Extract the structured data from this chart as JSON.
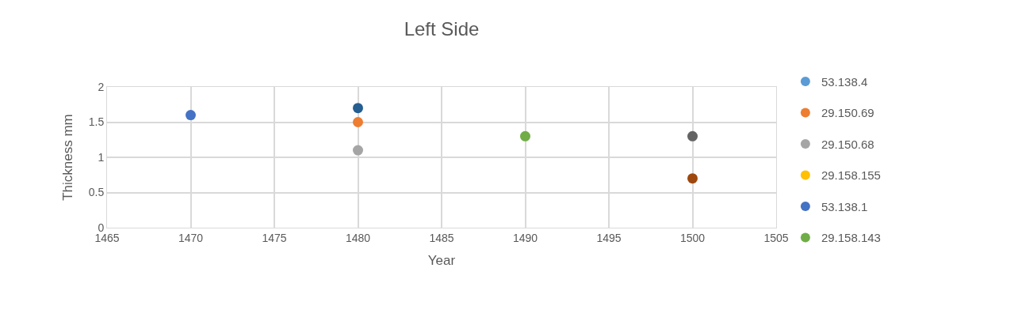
{
  "chart_data": {
    "type": "scatter",
    "title": "Left Side",
    "xlabel": "Year",
    "ylabel": "Thickness mm",
    "xlim": [
      1465,
      1505
    ],
    "xticks": [
      1465,
      1470,
      1475,
      1480,
      1485,
      1490,
      1495,
      1500,
      1505
    ],
    "ylim": [
      0,
      2
    ],
    "yticks": [
      0,
      0.5,
      1,
      1.5,
      2
    ],
    "grid": true,
    "legend": "right",
    "marker": "circle",
    "series": [
      {
        "name": "53.138.4",
        "color": "#5b9bd5"
      },
      {
        "name": "29.150.69",
        "color": "#ed7d31",
        "x": [
          1480
        ],
        "values": [
          1.5
        ]
      },
      {
        "name": "29.150.68",
        "color": "#a5a5a5",
        "x": [
          1480
        ],
        "values": [
          1.1
        ]
      },
      {
        "name": "29.158.155",
        "color": "#ffc000"
      },
      {
        "name": "53.138.1",
        "color": "#4472c4",
        "x": [
          1470
        ],
        "values": [
          1.6
        ]
      },
      {
        "name": "29.158.143",
        "color": "#70ad47",
        "x": [
          1490
        ],
        "values": [
          1.3
        ]
      },
      {
        "color": "#255e91",
        "x": [
          1480
        ],
        "values": [
          1.7
        ]
      },
      {
        "color": "#636363",
        "x": [
          1500
        ],
        "values": [
          1.3
        ]
      },
      {
        "color": "#9e480e",
        "x": [
          1500
        ],
        "values": [
          0.7
        ]
      }
    ]
  }
}
